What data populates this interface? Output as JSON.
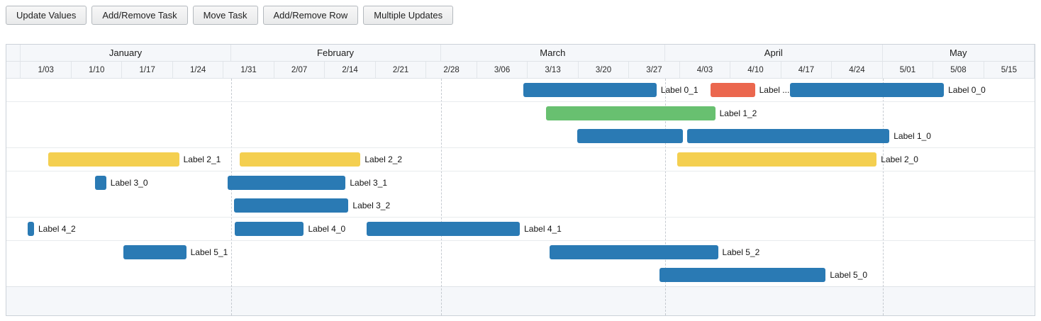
{
  "toolbar": {
    "buttons": [
      {
        "name": "update-values",
        "label": "Update Values"
      },
      {
        "name": "add-remove-task",
        "label": "Add/Remove Task"
      },
      {
        "name": "move-task",
        "label": "Move Task"
      },
      {
        "name": "add-remove-row",
        "label": "Add/Remove Row"
      },
      {
        "name": "multiple-updates",
        "label": "Multiple Updates"
      }
    ]
  },
  "chart_data": {
    "type": "bar",
    "subtype": "gantt-timeline",
    "legend": "none",
    "grid": "dashed vertical lines at month starts",
    "palette": {
      "blue": "#2a7ab4",
      "green": "#68c070",
      "yellow": "#f4cf50",
      "red": "#eb674e"
    },
    "header": {
      "lead_width_pct": 1.41,
      "months": [
        {
          "label": "January",
          "width_pct": 20.42
        },
        {
          "label": "February",
          "width_pct": 20.42
        },
        {
          "label": "March",
          "width_pct": 21.83
        },
        {
          "label": "April",
          "width_pct": 21.13
        },
        {
          "label": "May",
          "width_pct": 14.79
        }
      ],
      "week_ticks": [
        {
          "label": "1/03",
          "width_pct": 4.93
        },
        {
          "label": "1/10",
          "width_pct": 4.93
        },
        {
          "label": "1/17",
          "width_pct": 4.93
        },
        {
          "label": "1/24",
          "width_pct": 4.93
        },
        {
          "label": "1/31",
          "width_pct": 4.93
        },
        {
          "label": "2/07",
          "width_pct": 4.93
        },
        {
          "label": "2/14",
          "width_pct": 4.93
        },
        {
          "label": "2/21",
          "width_pct": 4.93
        },
        {
          "label": "2/28",
          "width_pct": 4.93
        },
        {
          "label": "3/06",
          "width_pct": 4.93
        },
        {
          "label": "3/13",
          "width_pct": 4.93
        },
        {
          "label": "3/20",
          "width_pct": 4.93
        },
        {
          "label": "3/27",
          "width_pct": 4.93
        },
        {
          "label": "4/03",
          "width_pct": 4.93
        },
        {
          "label": "4/10",
          "width_pct": 4.93
        },
        {
          "label": "4/17",
          "width_pct": 4.93
        },
        {
          "label": "4/24",
          "width_pct": 4.93
        },
        {
          "label": "5/01",
          "width_pct": 4.93
        },
        {
          "label": "5/08",
          "width_pct": 4.93
        },
        {
          "label": "5/15",
          "width_pct": 4.93
        }
      ]
    },
    "month_lines_pct": [
      21.83,
      42.25,
      64.08,
      85.21
    ],
    "rows": [
      {
        "name": "row-0",
        "lines": [
          [
            {
              "label": "Label 0_1",
              "color": "blue",
              "left_pct": 50.28,
              "width_pct": 12.95
            },
            {
              "label": "Label ...",
              "color": "red",
              "left_pct": 68.46,
              "width_pct": 4.34
            },
            {
              "label": "Label 0_0",
              "color": "blue",
              "left_pct": 76.24,
              "width_pct": 14.94
            }
          ]
        ]
      },
      {
        "name": "row-1",
        "lines": [
          [
            {
              "label": "Label 1_2",
              "color": "green",
              "left_pct": 52.48,
              "width_pct": 16.46
            }
          ],
          [
            {
              "label": "",
              "color": "blue",
              "left_pct": 55.51,
              "width_pct": 10.26
            },
            {
              "label": "Label 1_0",
              "color": "blue",
              "left_pct": 66.18,
              "width_pct": 19.7
            }
          ]
        ]
      },
      {
        "name": "row-2",
        "lines": [
          [
            {
              "label": "Label 2_1",
              "color": "yellow",
              "left_pct": 4.06,
              "width_pct": 12.74
            },
            {
              "label": "Label 2_2",
              "color": "yellow",
              "left_pct": 22.66,
              "width_pct": 11.78
            },
            {
              "label": "Label 2_0",
              "color": "yellow",
              "left_pct": 65.22,
              "width_pct": 19.42
            }
          ]
        ]
      },
      {
        "name": "row-3",
        "lines": [
          [
            {
              "label": "Label 3_0",
              "color": "blue",
              "left_pct": 8.61,
              "width_pct": 1.1
            },
            {
              "label": "Label 3_1",
              "color": "blue",
              "left_pct": 21.49,
              "width_pct": 11.5
            }
          ],
          [
            {
              "label": "Label 3_2",
              "color": "blue",
              "left_pct": 22.11,
              "width_pct": 11.16
            }
          ]
        ]
      },
      {
        "name": "row-4",
        "lines": [
          [
            {
              "label": "Label 4_2",
              "color": "blue",
              "left_pct": 2.07,
              "width_pct": 0.62
            },
            {
              "label": "Label 4_0",
              "color": "blue",
              "left_pct": 22.18,
              "width_pct": 6.75
            },
            {
              "label": "Label 4_1",
              "color": "blue",
              "left_pct": 35.06,
              "width_pct": 14.88
            }
          ]
        ]
      },
      {
        "name": "row-5",
        "lines": [
          [
            {
              "label": "Label 5_1",
              "color": "blue",
              "left_pct": 11.36,
              "width_pct": 6.13
            },
            {
              "label": "Label 5_2",
              "color": "blue",
              "left_pct": 52.82,
              "width_pct": 16.39
            }
          ],
          [
            {
              "label": "Label 5_0",
              "color": "blue",
              "left_pct": 63.5,
              "width_pct": 16.18
            }
          ]
        ]
      }
    ]
  }
}
